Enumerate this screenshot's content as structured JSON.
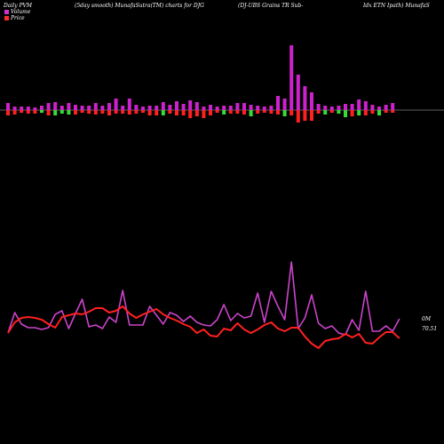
{
  "header": {
    "left": "Daily PVM",
    "center1": "(5day smooth) MunafaSutra(TM) charts for DJG",
    "center2": "(DJ-UBS Grains TR Sub-",
    "right": "Idx ETN Ipath) MunafaS"
  },
  "legend": {
    "volume_label": "Volume",
    "price_label": "Price",
    "volume_color": "#cc33cc",
    "price_color": "#ff2a2a"
  },
  "labels": {
    "volume_end": "0M",
    "price_end": "70.51"
  },
  "colors": {
    "bar_up": "#cc22cc",
    "bar_down_red": "#ff2020",
    "bar_down_green": "#33dd33",
    "volume_line": "#cc44cc",
    "price_line": "#ff2020",
    "baseline": "#bbbbbb"
  },
  "chart_data": {
    "type": "bar+line",
    "bars": [
      {
        "up": 8,
        "down": 6,
        "dc": "red"
      },
      {
        "up": 4,
        "down": 5,
        "dc": "red"
      },
      {
        "up": 4,
        "down": 3,
        "dc": "red"
      },
      {
        "up": 4,
        "down": 4,
        "dc": "red"
      },
      {
        "up": 3,
        "down": 4,
        "dc": "red"
      },
      {
        "up": 5,
        "down": 3,
        "dc": "green"
      },
      {
        "up": 8,
        "down": 6,
        "dc": "red"
      },
      {
        "up": 9,
        "down": 6,
        "dc": "green"
      },
      {
        "up": 5,
        "down": 4,
        "dc": "green"
      },
      {
        "up": 8,
        "down": 5,
        "dc": "green"
      },
      {
        "up": 6,
        "down": 5,
        "dc": "red"
      },
      {
        "up": 5,
        "down": 3,
        "dc": "red"
      },
      {
        "up": 5,
        "down": 4,
        "dc": "red"
      },
      {
        "up": 8,
        "down": 5,
        "dc": "red"
      },
      {
        "up": 5,
        "down": 4,
        "dc": "red"
      },
      {
        "up": 8,
        "down": 6,
        "dc": "red"
      },
      {
        "up": 13,
        "down": 4,
        "dc": "red"
      },
      {
        "up": 5,
        "down": 4,
        "dc": "red"
      },
      {
        "up": 13,
        "down": 5,
        "dc": "red"
      },
      {
        "up": 6,
        "down": 4,
        "dc": "red"
      },
      {
        "up": 4,
        "down": 3,
        "dc": "red"
      },
      {
        "up": 5,
        "down": 6,
        "dc": "red"
      },
      {
        "up": 5,
        "down": 6,
        "dc": "red"
      },
      {
        "up": 9,
        "down": 6,
        "dc": "green"
      },
      {
        "up": 6,
        "down": 4,
        "dc": "red"
      },
      {
        "up": 10,
        "down": 6,
        "dc": "red"
      },
      {
        "up": 7,
        "down": 6,
        "dc": "red"
      },
      {
        "up": 11,
        "down": 9,
        "dc": "red"
      },
      {
        "up": 9,
        "down": 7,
        "dc": "red"
      },
      {
        "up": 4,
        "down": 9,
        "dc": "red"
      },
      {
        "up": 6,
        "down": 6,
        "dc": "red"
      },
      {
        "up": 4,
        "down": 3,
        "dc": "red"
      },
      {
        "up": 5,
        "down": 5,
        "dc": "green"
      },
      {
        "up": 5,
        "down": 4,
        "dc": "red"
      },
      {
        "up": 8,
        "down": 4,
        "dc": "red"
      },
      {
        "up": 8,
        "down": 5,
        "dc": "red"
      },
      {
        "up": 6,
        "down": 7,
        "dc": "green"
      },
      {
        "up": 5,
        "down": 4,
        "dc": "red"
      },
      {
        "up": 4,
        "down": 3,
        "dc": "red"
      },
      {
        "up": 5,
        "down": 4,
        "dc": "red"
      },
      {
        "up": 16,
        "down": 5,
        "dc": "red"
      },
      {
        "up": 13,
        "down": 7,
        "dc": "green"
      },
      {
        "up": 73,
        "down": 6,
        "dc": "red"
      },
      {
        "up": 40,
        "down": 14,
        "dc": "red"
      },
      {
        "up": 27,
        "down": 12,
        "dc": "red"
      },
      {
        "up": 20,
        "down": 12,
        "dc": "red"
      },
      {
        "up": 7,
        "down": 4,
        "dc": "red"
      },
      {
        "up": 5,
        "down": 5,
        "dc": "green"
      },
      {
        "up": 4,
        "down": 3,
        "dc": "red"
      },
      {
        "up": 5,
        "down": 4,
        "dc": "green"
      },
      {
        "up": 7,
        "down": 8,
        "dc": "green"
      },
      {
        "up": 7,
        "down": 7,
        "dc": "red"
      },
      {
        "up": 12,
        "down": 6,
        "dc": "green"
      },
      {
        "up": 10,
        "down": 6,
        "dc": "red"
      },
      {
        "up": 6,
        "down": 4,
        "dc": "red"
      },
      {
        "up": 4,
        "down": 6,
        "dc": "green"
      },
      {
        "up": 6,
        "down": 3,
        "dc": "red"
      },
      {
        "up": 8,
        "down": 3,
        "dc": "red"
      }
    ],
    "volume_line": [
      375,
      352,
      365,
      369,
      369,
      371,
      369,
      354,
      350,
      370,
      353,
      337,
      368,
      366,
      370,
      357,
      363,
      327,
      366,
      366,
      366,
      345,
      355,
      365,
      352,
      355,
      362,
      356,
      363,
      366,
      367,
      360,
      343,
      361,
      353,
      358,
      356,
      330,
      363,
      328,
      345,
      360,
      295,
      370,
      358,
      332,
      364,
      370,
      367,
      375,
      377,
      360,
      372,
      328,
      373,
      373,
      367,
      373,
      359
    ],
    "price_line": [
      375,
      363,
      358,
      357,
      358,
      360,
      365,
      369,
      357,
      355,
      353,
      354,
      351,
      347,
      347,
      352,
      350,
      345,
      353,
      358,
      354,
      351,
      348,
      354,
      358,
      361,
      365,
      368,
      375,
      371,
      378,
      379,
      370,
      372,
      364,
      371,
      375,
      371,
      366,
      363,
      370,
      373,
      369,
      369,
      379,
      387,
      392,
      384,
      382,
      381,
      376,
      380,
      376,
      386,
      387,
      380,
      374,
      374,
      381
    ]
  }
}
